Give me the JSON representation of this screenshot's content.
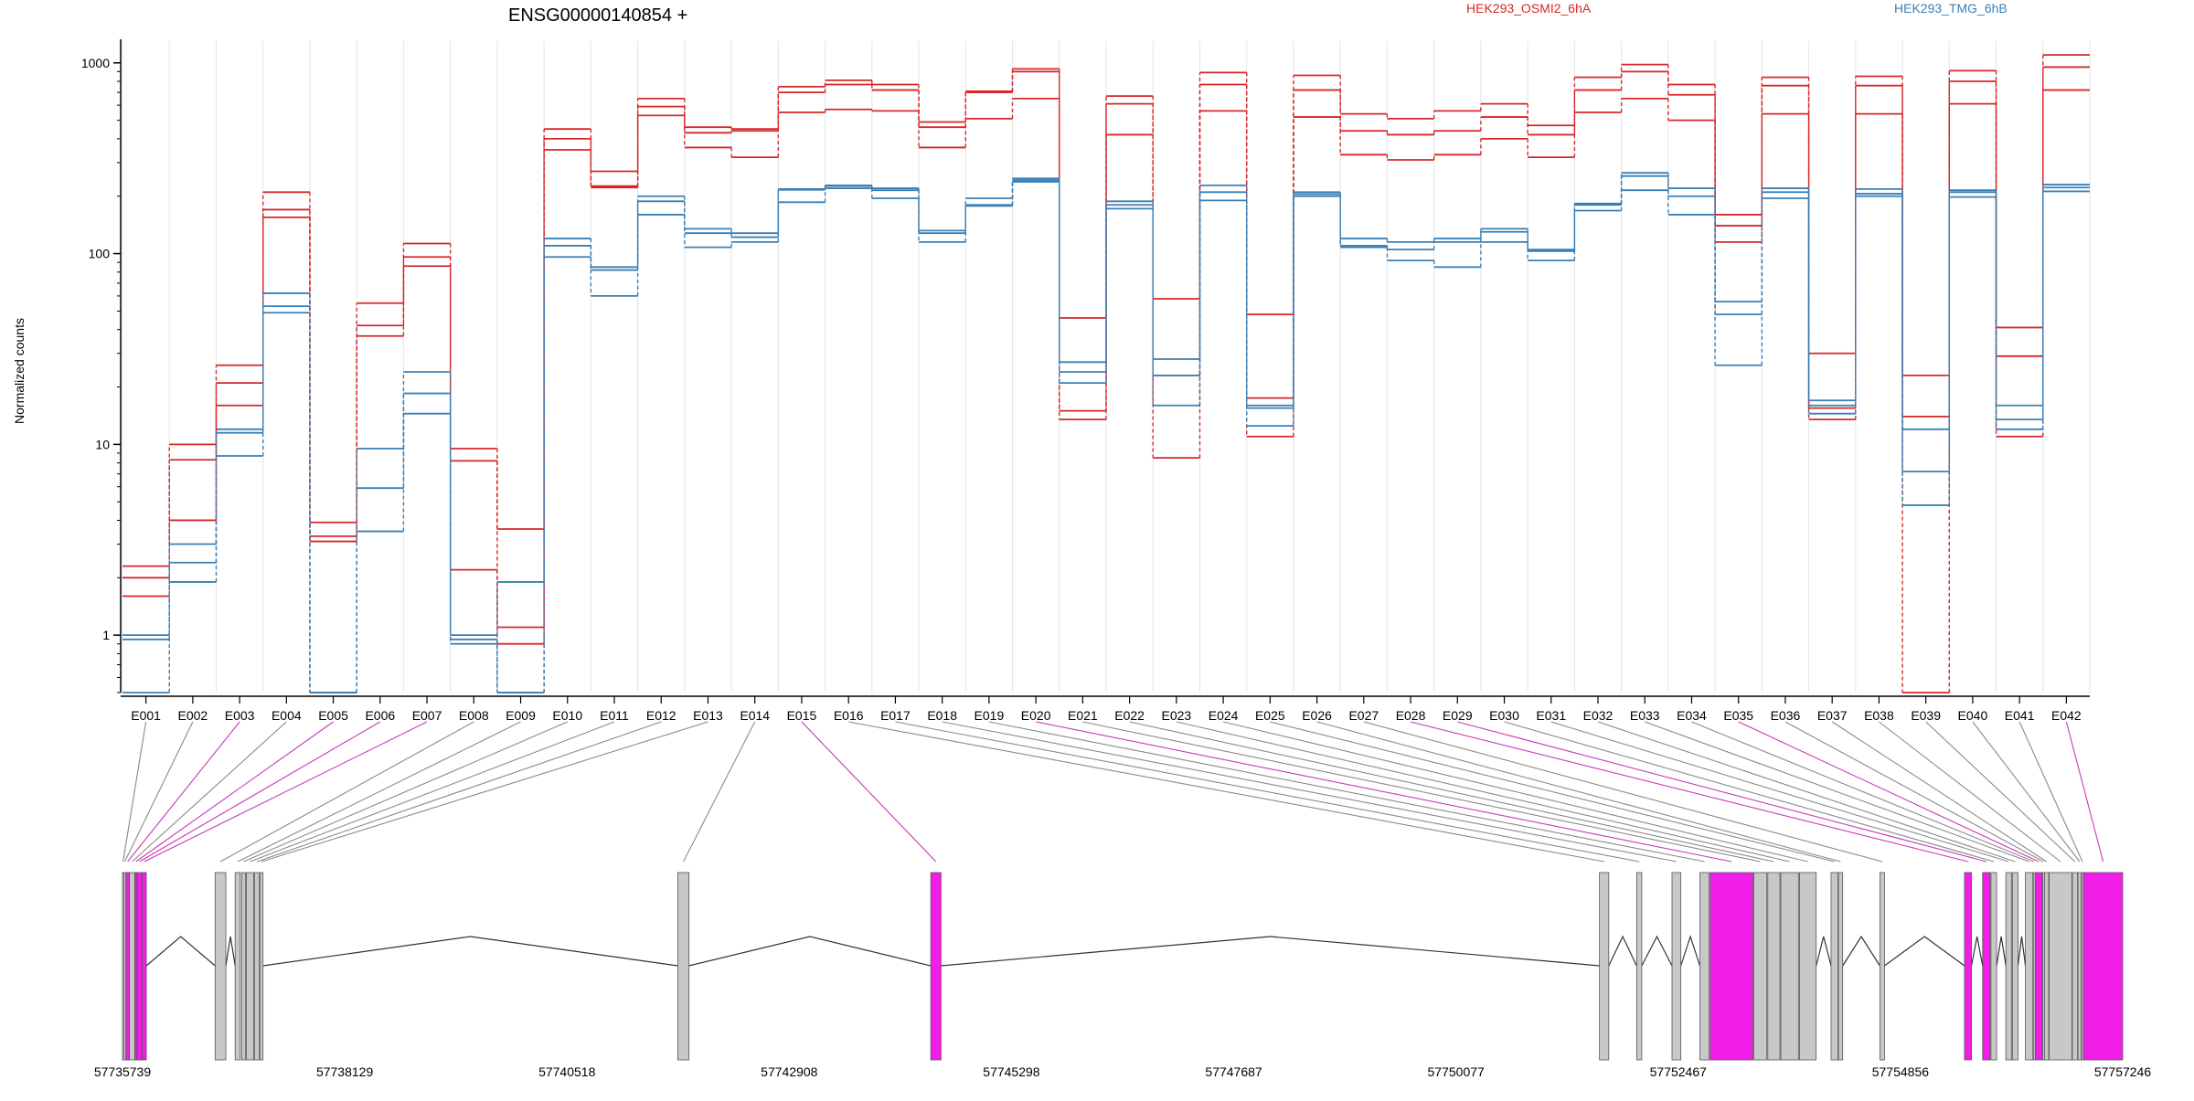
{
  "chart_data": {
    "type": "line",
    "title": "ENSG00000140854 +",
    "ylabel": "Normalized counts",
    "yscale": "log",
    "ylim": [
      0.5,
      1300
    ],
    "yticks": [
      1,
      10,
      100,
      1000
    ],
    "grid": "vertical",
    "legend_placement": "top-right",
    "exons": [
      "E001",
      "E002",
      "E003",
      "E004",
      "E005",
      "E006",
      "E007",
      "E008",
      "E009",
      "E010",
      "E011",
      "E012",
      "E013",
      "E014",
      "E015",
      "E016",
      "E017",
      "E018",
      "E019",
      "E020",
      "E021",
      "E022",
      "E023",
      "E024",
      "E025",
      "E026",
      "E027",
      "E028",
      "E029",
      "E030",
      "E031",
      "E032",
      "E033",
      "E034",
      "E035",
      "E036",
      "E037",
      "E038",
      "E039",
      "E040",
      "E041",
      "E042"
    ],
    "groups": [
      {
        "name": "HEK293_OSMI2_6hA",
        "color": "#d62728",
        "replicates": [
          [
            2.3,
            10,
            26,
            210,
            3.9,
            55,
            113,
            9.5,
            3.6,
            450,
            270,
            650,
            460,
            450,
            750,
            810,
            770,
            490,
            710,
            930,
            46,
            670,
            58,
            890,
            48,
            860,
            540,
            510,
            560,
            610,
            470,
            840,
            980,
            770,
            160,
            840,
            30,
            850,
            23,
            910,
            41,
            1100
          ],
          [
            2.0,
            8.3,
            21,
            170,
            3.3,
            42,
            96,
            8.2,
            1.1,
            400,
            226,
            590,
            430,
            440,
            700,
            770,
            720,
            460,
            700,
            900,
            15,
            610,
            23,
            770,
            17.5,
            720,
            440,
            420,
            440,
            520,
            420,
            720,
            900,
            680,
            140,
            760,
            15.5,
            760,
            14,
            800,
            29,
            950
          ],
          [
            1.6,
            4.0,
            16,
            155,
            3.1,
            37,
            86,
            2.2,
            0.9,
            350,
            222,
            530,
            360,
            320,
            550,
            570,
            560,
            360,
            510,
            650,
            13.5,
            420,
            8.5,
            560,
            11,
            520,
            330,
            310,
            330,
            400,
            320,
            550,
            650,
            500,
            115,
            540,
            13.5,
            540,
            0.5,
            610,
            11,
            720
          ]
        ]
      },
      {
        "name": "HEK293_TMG_6hB",
        "color": "#3a7fb5",
        "replicates": [
          [
            1.0,
            3.0,
            12,
            62,
            0.5,
            9.5,
            24,
            1.0,
            1.9,
            120,
            85,
            200,
            135,
            128,
            218,
            228,
            220,
            132,
            195,
            248,
            27,
            188,
            28,
            228,
            16,
            210,
            120,
            115,
            120,
            135,
            105,
            183,
            265,
            220,
            56,
            220,
            17,
            218,
            12,
            215,
            16,
            230
          ],
          [
            0.95,
            2.4,
            11.5,
            53,
            0.5,
            5.9,
            18.5,
            0.95,
            0.5,
            110,
            82,
            188,
            128,
            122,
            216,
            226,
            215,
            128,
            180,
            243,
            24,
            180,
            23,
            210,
            15.5,
            205,
            110,
            105,
            115,
            130,
            103,
            180,
            255,
            200,
            48,
            210,
            16,
            206,
            7.2,
            210,
            13.5,
            222
          ],
          [
            0.5,
            1.9,
            8.7,
            49,
            0.5,
            3.5,
            14.5,
            0.9,
            0.5,
            96,
            60,
            160,
            108,
            115,
            186,
            220,
            195,
            115,
            178,
            238,
            21,
            172,
            16,
            190,
            12.5,
            200,
            108,
            92,
            85,
            115,
            92,
            168,
            215,
            160,
            26,
            195,
            14.5,
            200,
            4.8,
            198,
            12,
            212
          ]
        ]
      }
    ],
    "gene_model": {
      "coordinate_labels": [
        "57735739",
        "57738129",
        "57740518",
        "57742908",
        "57745298",
        "57747687",
        "57750077",
        "57752467",
        "57754856",
        "57757246"
      ],
      "coord_start": 57735739,
      "coord_end": 57757246,
      "exon_regions": [
        {
          "start": 57735739,
          "end": 57735750,
          "highlight": false
        },
        {
          "start": 57735752,
          "end": 57735775,
          "highlight": false
        },
        {
          "start": 57735777,
          "end": 57735812,
          "highlight": true
        },
        {
          "start": 57735814,
          "end": 57735870,
          "highlight": false
        },
        {
          "start": 57735872,
          "end": 57735895,
          "highlight": true
        },
        {
          "start": 57735897,
          "end": 57735947,
          "highlight": true
        },
        {
          "start": 57735949,
          "end": 57735995,
          "highlight": true
        },
        {
          "start": 57736735,
          "end": 57736850,
          "highlight": false
        },
        {
          "start": 57736950,
          "end": 57737005,
          "highlight": false
        },
        {
          "start": 57737020,
          "end": 57737060,
          "highlight": false
        },
        {
          "start": 57737070,
          "end": 57737150,
          "highlight": false
        },
        {
          "start": 57737160,
          "end": 57737210,
          "highlight": false
        },
        {
          "start": 57737220,
          "end": 57737250,
          "highlight": false
        },
        {
          "start": 57741710,
          "end": 57741830,
          "highlight": false
        },
        {
          "start": 57744430,
          "end": 57744540,
          "highlight": true
        },
        {
          "start": 57751620,
          "end": 57751720,
          "highlight": false
        },
        {
          "start": 57752020,
          "end": 57752075,
          "highlight": false
        },
        {
          "start": 57752400,
          "end": 57752495,
          "highlight": false
        },
        {
          "start": 57752700,
          "end": 57752800,
          "highlight": false
        },
        {
          "start": 57752810,
          "end": 57753270,
          "highlight": true
        },
        {
          "start": 57753280,
          "end": 57753420,
          "highlight": false
        },
        {
          "start": 57753430,
          "end": 57753560,
          "highlight": false
        },
        {
          "start": 57753570,
          "end": 57753760,
          "highlight": false
        },
        {
          "start": 57753770,
          "end": 57753950,
          "highlight": false
        },
        {
          "start": 57754110,
          "end": 57754185,
          "highlight": false
        },
        {
          "start": 57754190,
          "end": 57754235,
          "highlight": false
        },
        {
          "start": 57754635,
          "end": 57754685,
          "highlight": false
        },
        {
          "start": 57755545,
          "end": 57755620,
          "highlight": true
        },
        {
          "start": 57755740,
          "end": 57755820,
          "highlight": true
        },
        {
          "start": 57755830,
          "end": 57755890,
          "highlight": false
        },
        {
          "start": 57755990,
          "end": 57756050,
          "highlight": false
        },
        {
          "start": 57756060,
          "end": 57756120,
          "highlight": false
        },
        {
          "start": 57756200,
          "end": 57756280,
          "highlight": false
        },
        {
          "start": 57756285,
          "end": 57756300,
          "highlight": false
        },
        {
          "start": 57756305,
          "end": 57756380,
          "highlight": true
        },
        {
          "start": 57756385,
          "end": 57756400,
          "highlight": false
        },
        {
          "start": 57756405,
          "end": 57756450,
          "highlight": false
        },
        {
          "start": 57756455,
          "end": 57756700,
          "highlight": false
        },
        {
          "start": 57756705,
          "end": 57756760,
          "highlight": false
        },
        {
          "start": 57756765,
          "end": 57756800,
          "highlight": false
        },
        {
          "start": 57756805,
          "end": 57756820,
          "highlight": false
        },
        {
          "start": 57756825,
          "end": 57757246,
          "highlight": true
        }
      ]
    }
  }
}
